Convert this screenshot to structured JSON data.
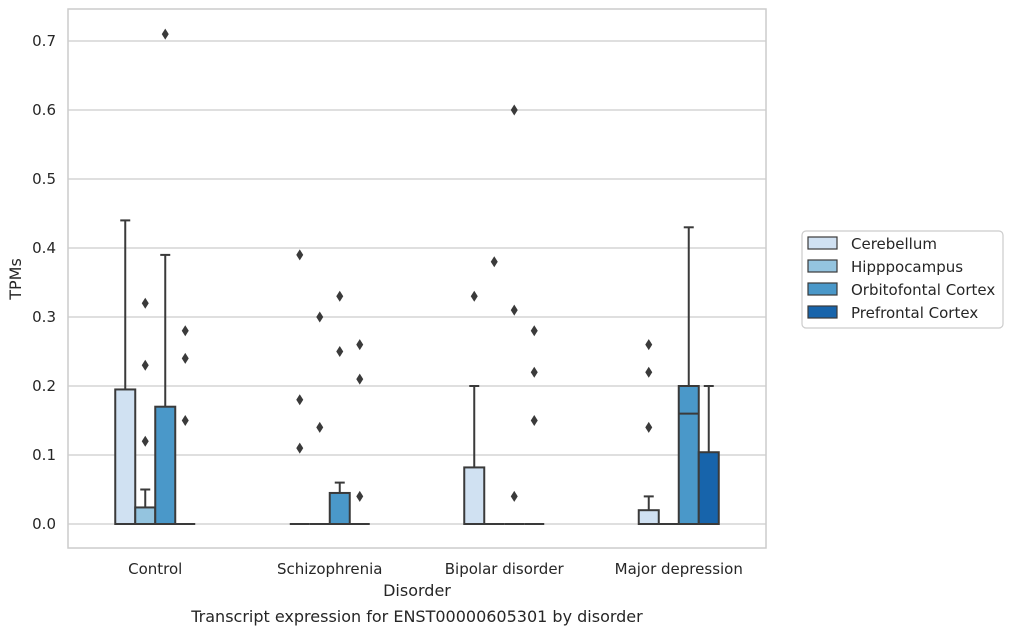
{
  "caption": "Transcript expression for ENST00000605301 by disorder",
  "chart_data": {
    "type": "box",
    "title": "",
    "xlabel": "Disorder",
    "ylabel": "TPMs",
    "categories": [
      "Control",
      "Schizophrenia",
      "Bipolar disorder",
      "Major depression"
    ],
    "yticks": [
      "0.0",
      "0.1",
      "0.2",
      "0.3",
      "0.4",
      "0.5",
      "0.6",
      "0.7"
    ],
    "ylim": [
      -0.035,
      0.745
    ],
    "grid": "horizontal",
    "legend_position": "right",
    "series": [
      {
        "name": "Cerebellum",
        "color": "#d0e1f2",
        "boxes": [
          {
            "whisker_low": 0.0,
            "q1": 0.0,
            "median": 0.0,
            "q3": 0.195,
            "whisker_high": 0.44,
            "outliers": []
          },
          {
            "whisker_low": 0.0,
            "q1": 0.0,
            "median": 0.0,
            "q3": 0.0,
            "whisker_high": 0.0,
            "outliers": [
              0.39,
              0.18,
              0.11
            ]
          },
          {
            "whisker_low": 0.0,
            "q1": 0.0,
            "median": 0.0,
            "q3": 0.082,
            "whisker_high": 0.2,
            "outliers": [
              0.33
            ]
          },
          {
            "whisker_low": 0.0,
            "q1": 0.0,
            "median": 0.0,
            "q3": 0.02,
            "whisker_high": 0.04,
            "outliers": [
              0.26,
              0.22,
              0.14
            ]
          }
        ]
      },
      {
        "name": "Hipppocampus",
        "color": "#94c4df",
        "boxes": [
          {
            "whisker_low": 0.0,
            "q1": 0.0,
            "median": 0.0,
            "q3": 0.024,
            "whisker_high": 0.05,
            "outliers": [
              0.32,
              0.23,
              0.12
            ]
          },
          {
            "whisker_low": 0.0,
            "q1": 0.0,
            "median": 0.0,
            "q3": 0.0,
            "whisker_high": 0.0,
            "outliers": [
              0.3,
              0.14
            ]
          },
          {
            "whisker_low": 0.0,
            "q1": 0.0,
            "median": 0.0,
            "q3": 0.0,
            "whisker_high": 0.0,
            "outliers": [
              0.38
            ]
          },
          {
            "whisker_low": 0.0,
            "q1": 0.0,
            "median": 0.0,
            "q3": 0.0,
            "whisker_high": 0.0,
            "outliers": []
          }
        ]
      },
      {
        "name": "Orbitofontal Cortex",
        "color": "#4a98c9",
        "boxes": [
          {
            "whisker_low": 0.0,
            "q1": 0.0,
            "median": 0.0,
            "q3": 0.17,
            "whisker_high": 0.39,
            "outliers": [
              0.71
            ]
          },
          {
            "whisker_low": 0.0,
            "q1": 0.0,
            "median": 0.0,
            "q3": 0.045,
            "whisker_high": 0.06,
            "outliers": [
              0.33,
              0.25
            ]
          },
          {
            "whisker_low": 0.0,
            "q1": 0.0,
            "median": 0.0,
            "q3": 0.0,
            "whisker_high": 0.0,
            "outliers": [
              0.6,
              0.31,
              0.04
            ]
          },
          {
            "whisker_low": 0.0,
            "q1": 0.0,
            "median": 0.16,
            "q3": 0.2,
            "whisker_high": 0.43,
            "outliers": []
          }
        ]
      },
      {
        "name": "Prefrontal Cortex",
        "color": "#1764ab",
        "boxes": [
          {
            "whisker_low": 0.0,
            "q1": 0.0,
            "median": 0.0,
            "q3": 0.0,
            "whisker_high": 0.0,
            "outliers": [
              0.28,
              0.24,
              0.15
            ]
          },
          {
            "whisker_low": 0.0,
            "q1": 0.0,
            "median": 0.0,
            "q3": 0.0,
            "whisker_high": 0.0,
            "outliers": [
              0.26,
              0.21,
              0.04
            ]
          },
          {
            "whisker_low": 0.0,
            "q1": 0.0,
            "median": 0.0,
            "q3": 0.0,
            "whisker_high": 0.0,
            "outliers": [
              0.28,
              0.22,
              0.15
            ]
          },
          {
            "whisker_low": 0.0,
            "q1": 0.0,
            "median": 0.0,
            "q3": 0.104,
            "whisker_high": 0.2,
            "outliers": []
          }
        ]
      }
    ]
  }
}
